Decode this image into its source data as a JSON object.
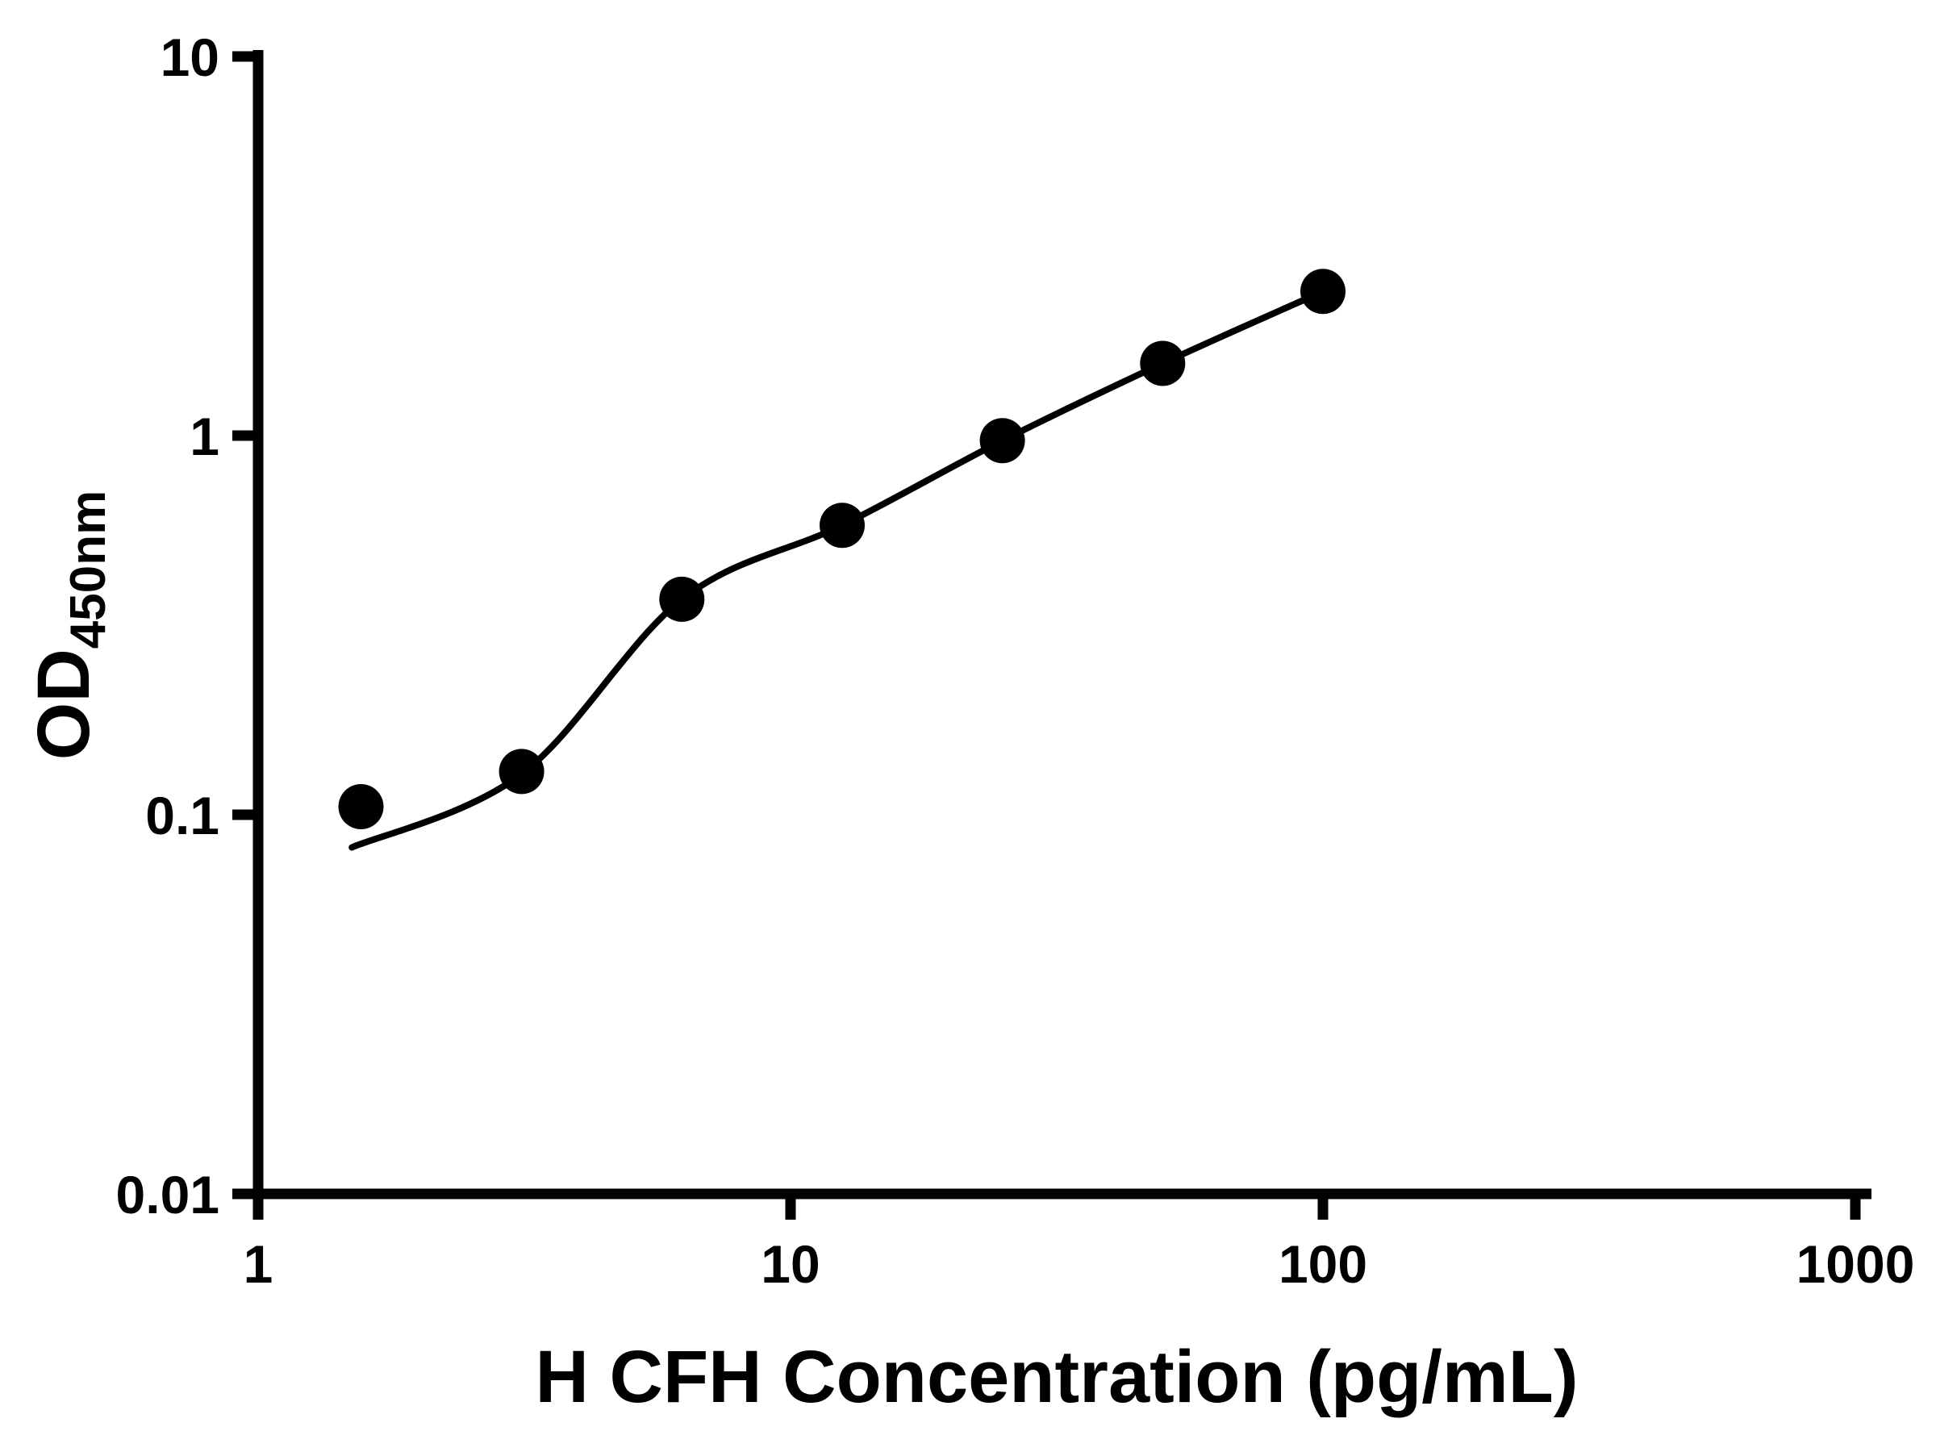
{
  "figure": {
    "background": "#ffffff",
    "ink_color": "#000000"
  },
  "chart_data": {
    "type": "scatter",
    "title": "",
    "xlabel": "H CFH Concentration (pg/mL)",
    "ylabel": "OD",
    "ylabel_subscript": "450nm",
    "x_scale": "log",
    "y_scale": "log",
    "xlim": [
      1,
      1000
    ],
    "ylim": [
      0.01,
      10
    ],
    "x_ticks": [
      "1",
      "10",
      "100",
      "1000"
    ],
    "y_ticks": [
      "10",
      "1",
      "0.1",
      "0.01"
    ],
    "grid": false,
    "legend": null,
    "points": {
      "x": [
        1.56,
        3.125,
        6.25,
        12.5,
        25,
        50,
        100
      ],
      "y": [
        0.105,
        0.13,
        0.37,
        0.58,
        0.97,
        1.55,
        2.4
      ]
    },
    "fit_curve": {
      "style": "smooth",
      "x": [
        1.5,
        3.125,
        6.25,
        12.5,
        25,
        50,
        100
      ],
      "y": [
        0.082,
        0.128,
        0.37,
        0.58,
        0.97,
        1.55,
        2.4
      ]
    }
  }
}
